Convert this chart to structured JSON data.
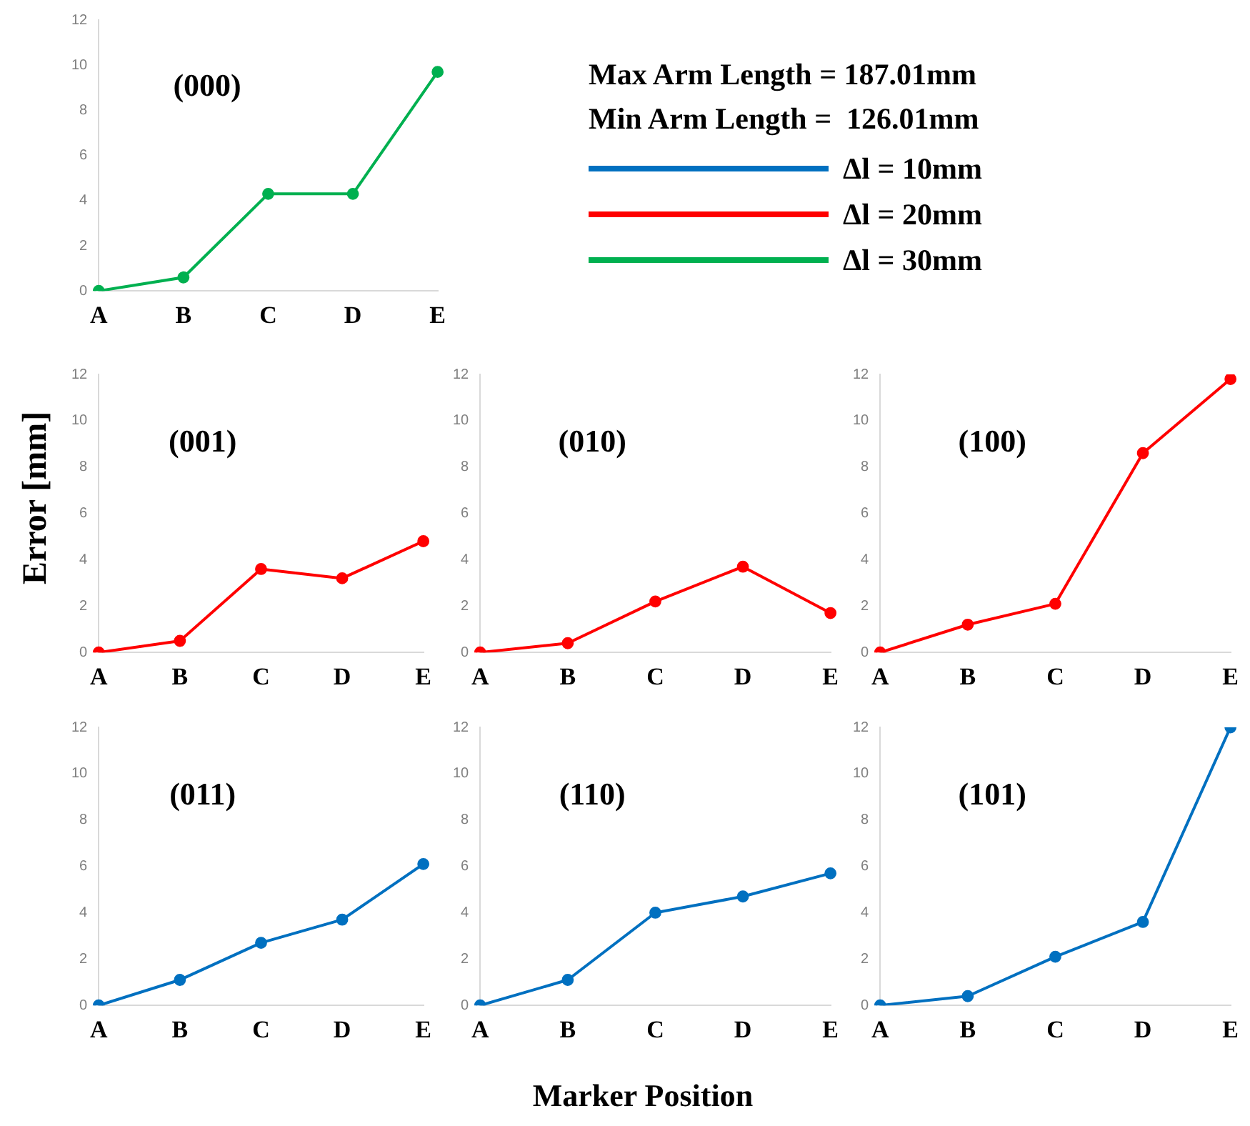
{
  "chart_data": [
    {
      "type": "line",
      "title": "(000)",
      "categories": [
        "A",
        "B",
        "C",
        "D",
        "E"
      ],
      "marker": "circle",
      "legend": "right",
      "annotations": [
        "Max Arm Length = 187.01mm",
        "Min Arm Length =  126.01mm"
      ],
      "ylim": [
        0,
        12
      ],
      "yticks": [
        0,
        2,
        4,
        6,
        8,
        10,
        12
      ],
      "series": [
        {
          "name": "Δl = 30mm",
          "color": "#00b050",
          "values": [
            0,
            0.6,
            4.3,
            4.3,
            9.7
          ]
        }
      ]
    },
    {
      "type": "line",
      "title": "(001)",
      "ylabel": "Error [mm]",
      "categories": [
        "A",
        "B",
        "C",
        "D",
        "E"
      ],
      "marker": "circle",
      "ylim": [
        0,
        12
      ],
      "yticks": [
        0,
        2,
        4,
        6,
        8,
        10,
        12
      ],
      "series": [
        {
          "name": "Δl = 20mm",
          "color": "#ff0000",
          "values": [
            0,
            0.5,
            3.6,
            3.2,
            4.8
          ]
        }
      ]
    },
    {
      "type": "line",
      "title": "(010)",
      "categories": [
        "A",
        "B",
        "C",
        "D",
        "E"
      ],
      "marker": "circle",
      "ylim": [
        0,
        12
      ],
      "yticks": [
        0,
        2,
        4,
        6,
        8,
        10,
        12
      ],
      "series": [
        {
          "color": "#ff0000",
          "values": [
            0,
            0.4,
            2.2,
            3.7,
            1.7
          ]
        }
      ]
    },
    {
      "type": "line",
      "title": "(100)",
      "categories": [
        "A",
        "B",
        "C",
        "D",
        "E"
      ],
      "marker": "circle",
      "ylim": [
        0,
        12
      ],
      "yticks": [
        0,
        2,
        4,
        6,
        8,
        10,
        12
      ],
      "series": [
        {
          "color": "#ff0000",
          "values": [
            0,
            1.2,
            2.1,
            8.6,
            11.8
          ]
        }
      ]
    },
    {
      "type": "line",
      "title": "(011)",
      "categories": [
        "A",
        "B",
        "C",
        "D",
        "E"
      ],
      "marker": "circle",
      "ylim": [
        0,
        12
      ],
      "yticks": [
        0,
        2,
        4,
        6,
        8,
        10,
        12
      ],
      "series": [
        {
          "name": "Δl = 10mm",
          "color": "#0070c0",
          "values": [
            0,
            1.1,
            2.7,
            3.7,
            6.1
          ]
        }
      ]
    },
    {
      "type": "line",
      "title": "(110)",
      "xlabel": "Marker Position",
      "categories": [
        "A",
        "B",
        "C",
        "D",
        "E"
      ],
      "marker": "circle",
      "ylim": [
        0,
        12
      ],
      "yticks": [
        0,
        2,
        4,
        6,
        8,
        10,
        12
      ],
      "series": [
        {
          "color": "#0070c0",
          "values": [
            0,
            1.1,
            4.0,
            4.7,
            5.7
          ]
        }
      ]
    },
    {
      "type": "line",
      "title": "(101)",
      "categories": [
        "A",
        "B",
        "C",
        "D",
        "E"
      ],
      "marker": "circle",
      "ylim": [
        0,
        12
      ],
      "yticks": [
        0,
        2,
        4,
        6,
        8,
        10,
        12
      ],
      "series": [
        {
          "color": "#0070c0",
          "values": [
            0,
            0.4,
            2.1,
            3.6,
            12.0
          ]
        }
      ]
    }
  ]
}
